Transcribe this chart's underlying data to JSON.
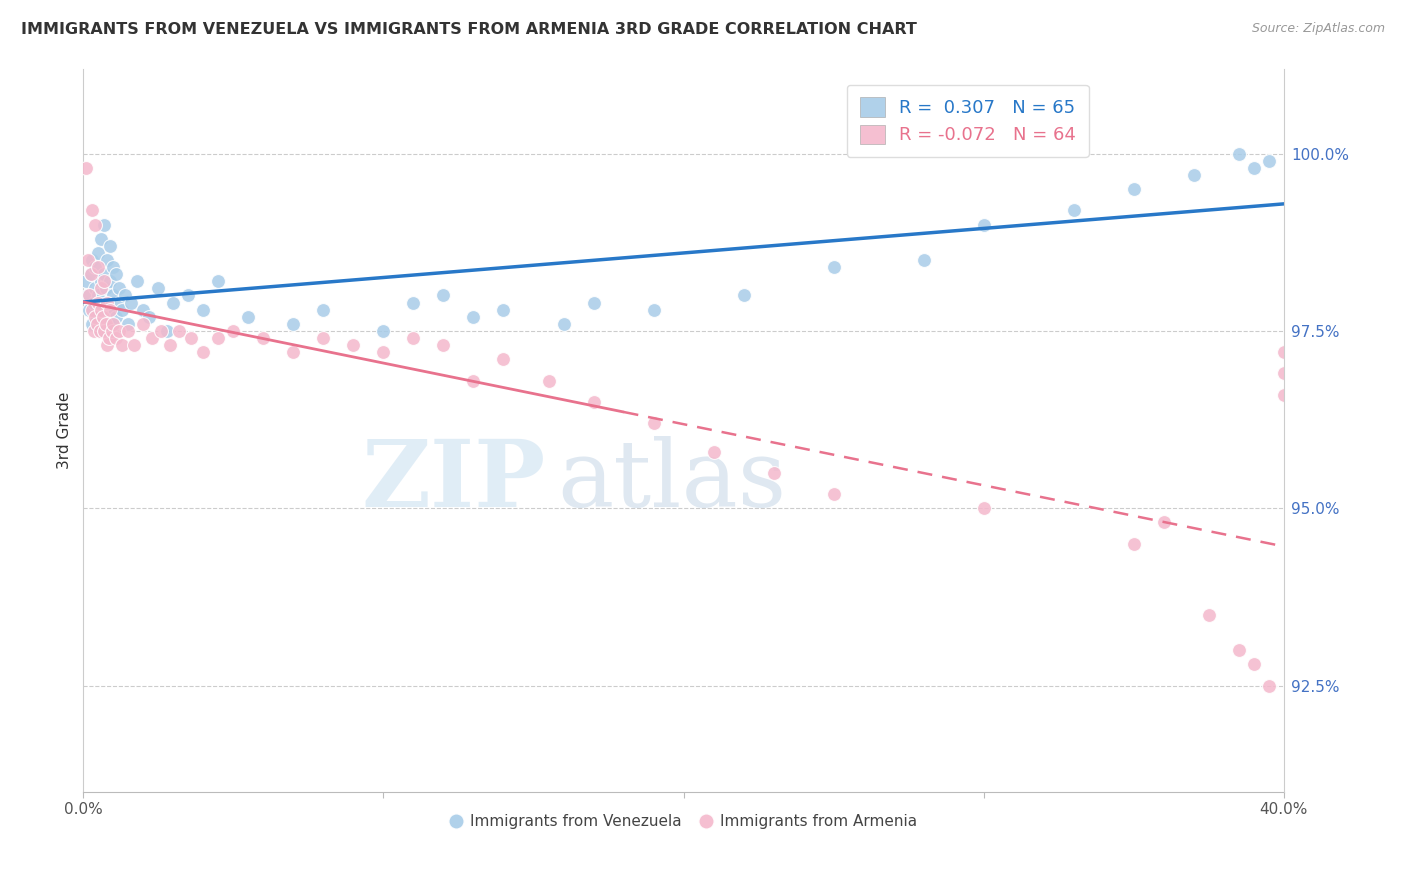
{
  "title": "IMMIGRANTS FROM VENEZUELA VS IMMIGRANTS FROM ARMENIA 3RD GRADE CORRELATION CHART",
  "source": "Source: ZipAtlas.com",
  "ylabel": "3rd Grade",
  "yticks": [
    92.5,
    95.0,
    97.5,
    100.0
  ],
  "ytick_labels": [
    "92.5%",
    "95.0%",
    "97.5%",
    "100.0%"
  ],
  "xlim": [
    0.0,
    40.0
  ],
  "ylim": [
    91.0,
    101.2
  ],
  "legend_r_blue": " 0.307",
  "legend_n_blue": "65",
  "legend_r_pink": "-0.072",
  "legend_n_pink": "64",
  "watermark_zip": "ZIP",
  "watermark_atlas": "atlas",
  "blue_color": "#a8cce8",
  "pink_color": "#f4b8cc",
  "line_blue": "#2878c8",
  "line_pink": "#e8728d",
  "venezuela_x": [
    0.1,
    0.15,
    0.2,
    0.25,
    0.3,
    0.3,
    0.35,
    0.4,
    0.4,
    0.45,
    0.5,
    0.5,
    0.55,
    0.6,
    0.6,
    0.65,
    0.7,
    0.7,
    0.75,
    0.8,
    0.8,
    0.85,
    0.9,
    0.9,
    0.95,
    1.0,
    1.0,
    1.1,
    1.1,
    1.2,
    1.2,
    1.3,
    1.4,
    1.5,
    1.6,
    1.8,
    2.0,
    2.2,
    2.5,
    2.8,
    3.0,
    3.5,
    4.0,
    4.5,
    5.5,
    7.0,
    8.0,
    10.0,
    11.0,
    12.0,
    13.0,
    14.0,
    16.0,
    17.0,
    19.0,
    22.0,
    25.0,
    28.0,
    30.0,
    33.0,
    35.0,
    37.0,
    38.5,
    39.0,
    39.5
  ],
  "venezuela_y": [
    98.2,
    98.0,
    97.8,
    98.3,
    98.5,
    97.6,
    97.9,
    98.1,
    98.4,
    97.7,
    98.0,
    98.6,
    97.5,
    98.2,
    98.8,
    97.8,
    98.3,
    99.0,
    98.1,
    97.9,
    98.5,
    97.6,
    98.2,
    98.7,
    97.8,
    98.0,
    98.4,
    97.7,
    98.3,
    97.9,
    98.1,
    97.8,
    98.0,
    97.6,
    97.9,
    98.2,
    97.8,
    97.7,
    98.1,
    97.5,
    97.9,
    98.0,
    97.8,
    98.2,
    97.7,
    97.6,
    97.8,
    97.5,
    97.9,
    98.0,
    97.7,
    97.8,
    97.6,
    97.9,
    97.8,
    98.0,
    98.4,
    98.5,
    99.0,
    99.2,
    99.5,
    99.7,
    100.0,
    99.8,
    99.9
  ],
  "armenia_x": [
    0.1,
    0.15,
    0.2,
    0.25,
    0.3,
    0.3,
    0.35,
    0.4,
    0.4,
    0.45,
    0.5,
    0.5,
    0.55,
    0.6,
    0.6,
    0.65,
    0.7,
    0.7,
    0.75,
    0.8,
    0.8,
    0.85,
    0.9,
    0.95,
    1.0,
    1.1,
    1.2,
    1.3,
    1.5,
    1.7,
    2.0,
    2.3,
    2.6,
    2.9,
    3.2,
    3.6,
    4.0,
    4.5,
    5.0,
    6.0,
    7.0,
    8.0,
    9.0,
    10.0,
    11.0,
    12.0,
    13.0,
    14.0,
    15.5,
    17.0,
    19.0,
    21.0,
    23.0,
    25.0,
    30.0,
    35.0,
    36.0,
    37.5,
    38.5,
    39.0,
    39.5,
    40.0,
    40.0,
    40.0
  ],
  "armenia_y": [
    99.8,
    98.5,
    98.0,
    98.3,
    97.8,
    99.2,
    97.5,
    97.7,
    99.0,
    97.6,
    97.9,
    98.4,
    97.5,
    97.8,
    98.1,
    97.7,
    97.5,
    98.2,
    97.6,
    97.3,
    97.9,
    97.4,
    97.8,
    97.5,
    97.6,
    97.4,
    97.5,
    97.3,
    97.5,
    97.3,
    97.6,
    97.4,
    97.5,
    97.3,
    97.5,
    97.4,
    97.2,
    97.4,
    97.5,
    97.4,
    97.2,
    97.4,
    97.3,
    97.2,
    97.4,
    97.3,
    96.8,
    97.1,
    96.8,
    96.5,
    96.2,
    95.8,
    95.5,
    95.2,
    95.0,
    94.5,
    94.8,
    93.5,
    93.0,
    92.8,
    92.5,
    97.2,
    96.9,
    96.6
  ]
}
